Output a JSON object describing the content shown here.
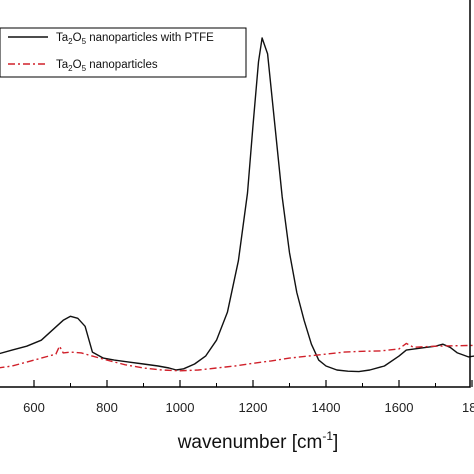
{
  "chart_data": {
    "type": "line",
    "title": "",
    "xlabel_main": "wavenumber [cm",
    "xlabel_sup": "-1",
    "xlabel_close": "]",
    "ylabel": "",
    "xlim": [
      500,
      1850
    ],
    "ylim": [
      0,
      1.0
    ],
    "xticks": [
      "600",
      "800",
      "1000",
      "1200",
      "1400",
      "1600",
      "18"
    ],
    "grid": false,
    "legend_position": "top-left",
    "series": [
      {
        "name_parts": [
          "Ta",
          "2",
          "O",
          "5",
          " nanoparticles with PTFE"
        ],
        "color": "#111111",
        "style": "solid",
        "x": [
          500,
          540,
          580,
          620,
          650,
          680,
          700,
          720,
          740,
          760,
          790,
          820,
          860,
          900,
          940,
          970,
          990,
          1010,
          1040,
          1070,
          1100,
          1130,
          1160,
          1185,
          1200,
          1215,
          1225,
          1240,
          1260,
          1280,
          1300,
          1320,
          1340,
          1360,
          1380,
          1400,
          1430,
          1460,
          1490,
          1520,
          1560,
          1600,
          1620,
          1660,
          1700,
          1720,
          1740,
          1760,
          1790,
          1820,
          1850
        ],
        "y": [
          0.045,
          0.055,
          0.065,
          0.08,
          0.105,
          0.13,
          0.14,
          0.135,
          0.115,
          0.05,
          0.035,
          0.03,
          0.025,
          0.02,
          0.015,
          0.01,
          0.005,
          0.008,
          0.02,
          0.04,
          0.08,
          0.15,
          0.28,
          0.45,
          0.62,
          0.78,
          0.84,
          0.8,
          0.62,
          0.44,
          0.3,
          0.2,
          0.13,
          0.07,
          0.03,
          0.015,
          0.005,
          0.002,
          0.001,
          0.005,
          0.015,
          0.04,
          0.055,
          0.06,
          0.065,
          0.07,
          0.062,
          0.048,
          0.038,
          0.042,
          0.035
        ]
      },
      {
        "name_parts": [
          "Ta",
          "2",
          "O",
          "5",
          " nanoparticles"
        ],
        "color": "#d0202a",
        "style": "dashdot",
        "x": [
          500,
          540,
          580,
          620,
          660,
          670,
          680,
          700,
          730,
          760,
          800,
          850,
          900,
          950,
          1000,
          1050,
          1100,
          1150,
          1200,
          1250,
          1300,
          1350,
          1400,
          1450,
          1500,
          1550,
          1600,
          1620,
          1640,
          1700,
          1750,
          1800,
          1850
        ],
        "y": [
          0.01,
          0.015,
          0.025,
          0.035,
          0.045,
          0.065,
          0.048,
          0.05,
          0.048,
          0.04,
          0.03,
          0.018,
          0.01,
          0.005,
          0.003,
          0.005,
          0.01,
          0.015,
          0.022,
          0.028,
          0.035,
          0.04,
          0.045,
          0.05,
          0.052,
          0.053,
          0.058,
          0.072,
          0.062,
          0.065,
          0.066,
          0.067,
          0.068
        ]
      }
    ]
  }
}
